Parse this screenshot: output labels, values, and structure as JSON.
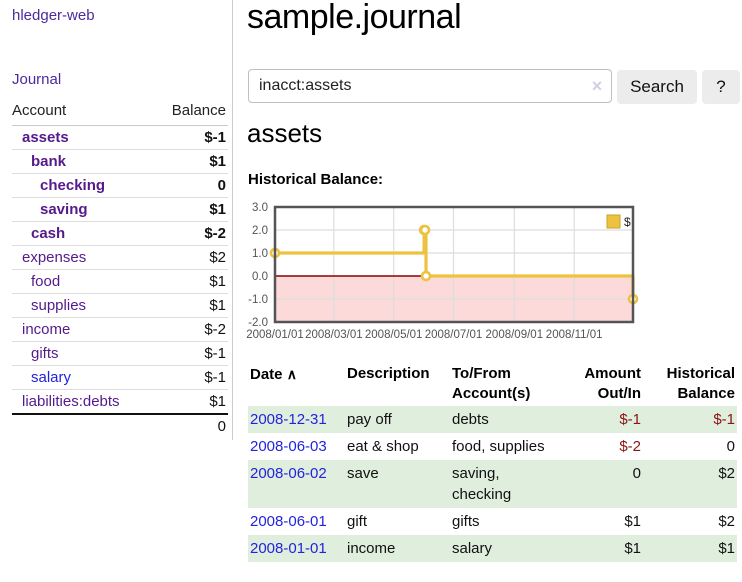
{
  "app": {
    "brand": "hledger-web",
    "nav_journal": "Journal"
  },
  "sidebar": {
    "accounts_table": {
      "col_account": "Account",
      "col_balance": "Balance",
      "rows": [
        {
          "name": "assets",
          "balance": "$-1",
          "level": 1,
          "bold": true,
          "neg": "dark"
        },
        {
          "name": "bank",
          "balance": "$1",
          "level": 2,
          "bold": true
        },
        {
          "name": "checking",
          "balance": "0",
          "level": 3,
          "bold": true
        },
        {
          "name": "saving",
          "balance": "$1",
          "level": 3,
          "bold": true
        },
        {
          "name": "cash",
          "balance": "$-2",
          "level": 2,
          "bold": true,
          "neg": "dark"
        },
        {
          "name": "expenses",
          "balance": "$2",
          "level": 1
        },
        {
          "name": "food",
          "balance": "$1",
          "level": 2
        },
        {
          "name": "supplies",
          "balance": "$1",
          "level": 2
        },
        {
          "name": "income",
          "balance": "$-2",
          "level": 1,
          "neg": "light"
        },
        {
          "name": "gifts",
          "balance": "$-1",
          "level": 2,
          "neg": "light"
        },
        {
          "name": "salary",
          "balance": "$-1",
          "level": 2,
          "neg": "light",
          "link": "blue"
        },
        {
          "name": "liabilities:debts",
          "balance": "$1",
          "level": 1
        }
      ],
      "total": "0"
    }
  },
  "header": {
    "title": "sample.journal"
  },
  "search": {
    "value": "inacct:assets",
    "clear_icon": "×",
    "button_label": "Search",
    "help_label": "?"
  },
  "account_page": {
    "heading": "assets"
  },
  "chart_data": {
    "type": "line",
    "style": "step",
    "title": "Historical Balance:",
    "series": [
      {
        "name": "$",
        "color": "#edc240",
        "points": [
          [
            "2008-01-01",
            1
          ],
          [
            "2008-06-01",
            2
          ],
          [
            "2008-06-02",
            2
          ],
          [
            "2008-06-03",
            0
          ],
          [
            "2008-12-31",
            -1
          ]
        ]
      }
    ],
    "x_range": [
      "2008-01-01",
      "2008-12-31"
    ],
    "ylim": [
      -2,
      3
    ],
    "y_ticks": [
      3.0,
      2.0,
      1.0,
      0.0,
      -1.0,
      -2.0
    ],
    "x_ticks": [
      "2008/01/01",
      "2008/03/01",
      "2008/05/01",
      "2008/07/01",
      "2008/09/01",
      "2008/11/01"
    ],
    "grid": true,
    "grid_color": "#dddddd",
    "tick_color": "#545454",
    "border_color": "#545454",
    "negative_region_color": "#fcdada",
    "zero_line_color": "#8b0000",
    "legend_position": "top-right"
  },
  "register_table": {
    "headers": {
      "date": "Date",
      "sort_asc_icon": "∧",
      "description": "Description",
      "accounts": "To/From Account(s)",
      "amount": "Amount Out/In",
      "balance": "Historical Balance"
    },
    "rows": [
      {
        "date": "2008-12-31",
        "description": "pay off",
        "accounts": "debts",
        "amount": "$-1",
        "balance": "$-1",
        "amount_neg": true,
        "balance_neg": true,
        "shade": true
      },
      {
        "date": "2008-06-03",
        "description": "eat & shop",
        "accounts": "food, supplies",
        "amount": "$-2",
        "balance": "0",
        "amount_neg": true
      },
      {
        "date": "2008-06-02",
        "description": "save",
        "accounts": "saving,\nchecking",
        "amount": "0",
        "balance": "$2",
        "shade": true
      },
      {
        "date": "2008-06-01",
        "description": "gift",
        "accounts": "gifts",
        "amount": "$1",
        "balance": "$2"
      },
      {
        "date": "2008-01-01",
        "description": "income",
        "accounts": "salary",
        "amount": "$1",
        "balance": "$1",
        "shade": true
      }
    ]
  },
  "colors": {
    "link_purple": "#551a8b",
    "link_blue": "#2323dd",
    "negative_dark": "#8b1414",
    "negative_light": "#c08383",
    "row_shade_green": "#e0eedd",
    "series_gold": "#edc240"
  }
}
